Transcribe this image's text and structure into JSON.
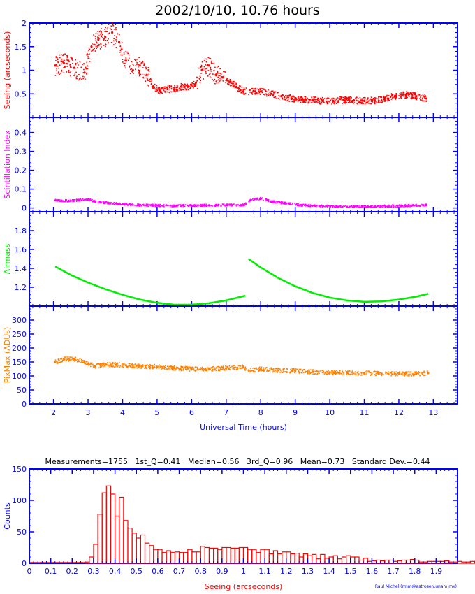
{
  "title": "2002/10/10, 10.76 hours",
  "credit": "Raul Michel (rmm@astrosen.unam.mx)",
  "colors": {
    "axis": "#0000ff",
    "seeing": "#ff0000",
    "scint": "#ff00ff",
    "airmass": "#00ee00",
    "pixmax": "#ff8000",
    "hist": "#ff0000",
    "text": "#000000"
  },
  "chart_data": [
    {
      "type": "scatter",
      "ylabel": "Seeing (arcseconds)",
      "ylim": [
        0,
        2
      ],
      "yticks": [
        "0.5",
        "1",
        "1.5",
        "2"
      ],
      "xlim": [
        1.3,
        13.7
      ],
      "series": [
        {
          "name": "Seeing",
          "color": "#ff0000",
          "points": [
            [
              2.05,
              1.1
            ],
            [
              2.3,
              1.15
            ],
            [
              2.6,
              1.05
            ],
            [
              2.9,
              0.95
            ],
            [
              3.1,
              1.5
            ],
            [
              3.3,
              1.65
            ],
            [
              3.5,
              1.7
            ],
            [
              3.7,
              1.8
            ],
            [
              3.9,
              1.6
            ],
            [
              4.1,
              1.2
            ],
            [
              4.3,
              1.0
            ],
            [
              4.5,
              1.1
            ],
            [
              4.7,
              0.9
            ],
            [
              4.9,
              0.65
            ],
            [
              5.1,
              0.55
            ],
            [
              5.3,
              0.6
            ],
            [
              5.5,
              0.6
            ],
            [
              5.7,
              0.65
            ],
            [
              5.9,
              0.65
            ],
            [
              6.1,
              0.7
            ],
            [
              6.3,
              1.0
            ],
            [
              6.5,
              1.1
            ],
            [
              6.7,
              0.9
            ],
            [
              6.9,
              0.85
            ],
            [
              7.1,
              0.75
            ],
            [
              7.3,
              0.65
            ],
            [
              7.5,
              0.55
            ],
            [
              7.8,
              0.55
            ],
            [
              8.0,
              0.55
            ],
            [
              8.3,
              0.5
            ],
            [
              8.6,
              0.45
            ],
            [
              8.9,
              0.4
            ],
            [
              9.2,
              0.38
            ],
            [
              9.5,
              0.37
            ],
            [
              9.8,
              0.35
            ],
            [
              10.1,
              0.35
            ],
            [
              10.4,
              0.37
            ],
            [
              10.7,
              0.36
            ],
            [
              11.0,
              0.35
            ],
            [
              11.3,
              0.36
            ],
            [
              11.6,
              0.4
            ],
            [
              11.9,
              0.45
            ],
            [
              12.2,
              0.48
            ],
            [
              12.5,
              0.45
            ],
            [
              12.8,
              0.4
            ]
          ]
        }
      ]
    },
    {
      "type": "scatter",
      "ylabel": "Scintillation Index",
      "ylim": [
        -0.02,
        0.48
      ],
      "yticks": [
        "0",
        "0.1",
        "0.2",
        "0.3",
        "0.4"
      ],
      "xlim": [
        1.3,
        13.7
      ],
      "series": [
        {
          "name": "Scintillation Index",
          "color": "#ff00ff",
          "points": [
            [
              2.05,
              0.04
            ],
            [
              2.5,
              0.038
            ],
            [
              3.0,
              0.045
            ],
            [
              3.2,
              0.035
            ],
            [
              3.6,
              0.025
            ],
            [
              4.0,
              0.02
            ],
            [
              4.5,
              0.015
            ],
            [
              5.0,
              0.013
            ],
            [
              5.5,
              0.012
            ],
            [
              6.0,
              0.013
            ],
            [
              6.5,
              0.014
            ],
            [
              7.0,
              0.015
            ],
            [
              7.5,
              0.015
            ],
            [
              7.7,
              0.04
            ],
            [
              8.0,
              0.05
            ],
            [
              8.3,
              0.035
            ],
            [
              8.7,
              0.025
            ],
            [
              9.2,
              0.015
            ],
            [
              9.7,
              0.01
            ],
            [
              10.2,
              0.008
            ],
            [
              10.7,
              0.007
            ],
            [
              11.2,
              0.008
            ],
            [
              11.7,
              0.01
            ],
            [
              12.2,
              0.012
            ],
            [
              12.8,
              0.015
            ]
          ]
        }
      ]
    },
    {
      "type": "line",
      "ylabel": "Airmass",
      "ylim": [
        1.0,
        2.0
      ],
      "yticks": [
        "1.2",
        "1.4",
        "1.6",
        "1.8"
      ],
      "xlim": [
        1.3,
        13.7
      ],
      "series": [
        {
          "name": "Airmass A",
          "color": "#00ee00",
          "points": [
            [
              2.05,
              1.42
            ],
            [
              2.5,
              1.33
            ],
            [
              3.0,
              1.25
            ],
            [
              3.5,
              1.18
            ],
            [
              4.0,
              1.12
            ],
            [
              4.5,
              1.07
            ],
            [
              5.0,
              1.035
            ],
            [
              5.5,
              1.015
            ],
            [
              6.0,
              1.015
            ],
            [
              6.5,
              1.03
            ],
            [
              7.0,
              1.06
            ],
            [
              7.55,
              1.11
            ]
          ]
        },
        {
          "name": "Airmass B",
          "color": "#00ee00",
          "points": [
            [
              7.65,
              1.5
            ],
            [
              8.0,
              1.41
            ],
            [
              8.5,
              1.3
            ],
            [
              9.0,
              1.21
            ],
            [
              9.5,
              1.14
            ],
            [
              10.0,
              1.09
            ],
            [
              10.5,
              1.06
            ],
            [
              11.0,
              1.045
            ],
            [
              11.5,
              1.05
            ],
            [
              12.0,
              1.07
            ],
            [
              12.5,
              1.1
            ],
            [
              12.85,
              1.13
            ]
          ]
        }
      ]
    },
    {
      "type": "scatter",
      "ylabel": "PixMax (ADUs)",
      "xlabel": "Universal Time (hours)",
      "ylim": [
        0,
        350
      ],
      "yticks": [
        "0",
        "50",
        "100",
        "150",
        "200",
        "250",
        "300"
      ],
      "xlim": [
        1.3,
        13.7
      ],
      "xticks": [
        "2",
        "3",
        "4",
        "5",
        "6",
        "7",
        "8",
        "9",
        "10",
        "11",
        "12",
        "13"
      ],
      "series": [
        {
          "name": "PixMax",
          "color": "#ff8000",
          "points": [
            [
              2.05,
              150
            ],
            [
              2.3,
              160
            ],
            [
              2.6,
              160
            ],
            [
              2.9,
              150
            ],
            [
              3.2,
              135
            ],
            [
              3.5,
              140
            ],
            [
              3.8,
              140
            ],
            [
              4.1,
              138
            ],
            [
              4.5,
              135
            ],
            [
              5.0,
              133
            ],
            [
              5.5,
              128
            ],
            [
              6.0,
              125
            ],
            [
              6.5,
              125
            ],
            [
              7.0,
              128
            ],
            [
              7.5,
              132
            ],
            [
              7.65,
              120
            ],
            [
              8.0,
              125
            ],
            [
              8.5,
              120
            ],
            [
              9.0,
              118
            ],
            [
              9.5,
              115
            ],
            [
              10.0,
              112
            ],
            [
              10.5,
              112
            ],
            [
              11.0,
              110
            ],
            [
              11.5,
              108
            ],
            [
              12.0,
              108
            ],
            [
              12.5,
              107
            ],
            [
              12.85,
              110
            ]
          ]
        }
      ]
    },
    {
      "type": "bar",
      "title": "Measurements=1755   1st_Q=0.41   Median=0.56   3rd_Q=0.96   Mean=0.73   Standard Dev.=0.44",
      "xlabel": "Seeing (arcseconds)",
      "ylabel": "Counts",
      "xlim": [
        0,
        2.0
      ],
      "ylim": [
        0,
        150
      ],
      "xticks": [
        "0",
        "0.1",
        "0.2",
        "0.3",
        "0.4",
        "0.5",
        "0.6",
        "0.7",
        "0.8",
        "0.9",
        "1",
        "1.1",
        "1.2",
        "1.3",
        "1.4",
        "1.5",
        "1.6",
        "1.7",
        "1.8",
        "1.9"
      ],
      "yticks": [
        "0",
        "50",
        "100",
        "150"
      ],
      "bin_width": 0.02,
      "bin_start": 0.26,
      "values": [
        2,
        10,
        30,
        78,
        112,
        123,
        110,
        75,
        105,
        68,
        56,
        48,
        40,
        45,
        32,
        28,
        22,
        22,
        17,
        20,
        17,
        18,
        17,
        17,
        22,
        18,
        18,
        27,
        25,
        24,
        24,
        22,
        25,
        25,
        24,
        24,
        25,
        25,
        22,
        22,
        17,
        22,
        22,
        15,
        20,
        15,
        18,
        18,
        15,
        16,
        10,
        15,
        12,
        14,
        7,
        14,
        8,
        10,
        12,
        7,
        10,
        12,
        10,
        10,
        5,
        8,
        3,
        4,
        5,
        4,
        5,
        5,
        3,
        4,
        5,
        5,
        6,
        5,
        2,
        2,
        3,
        3,
        3,
        3,
        4,
        2,
        2,
        3,
        2,
        2,
        3,
        3
      ]
    }
  ]
}
